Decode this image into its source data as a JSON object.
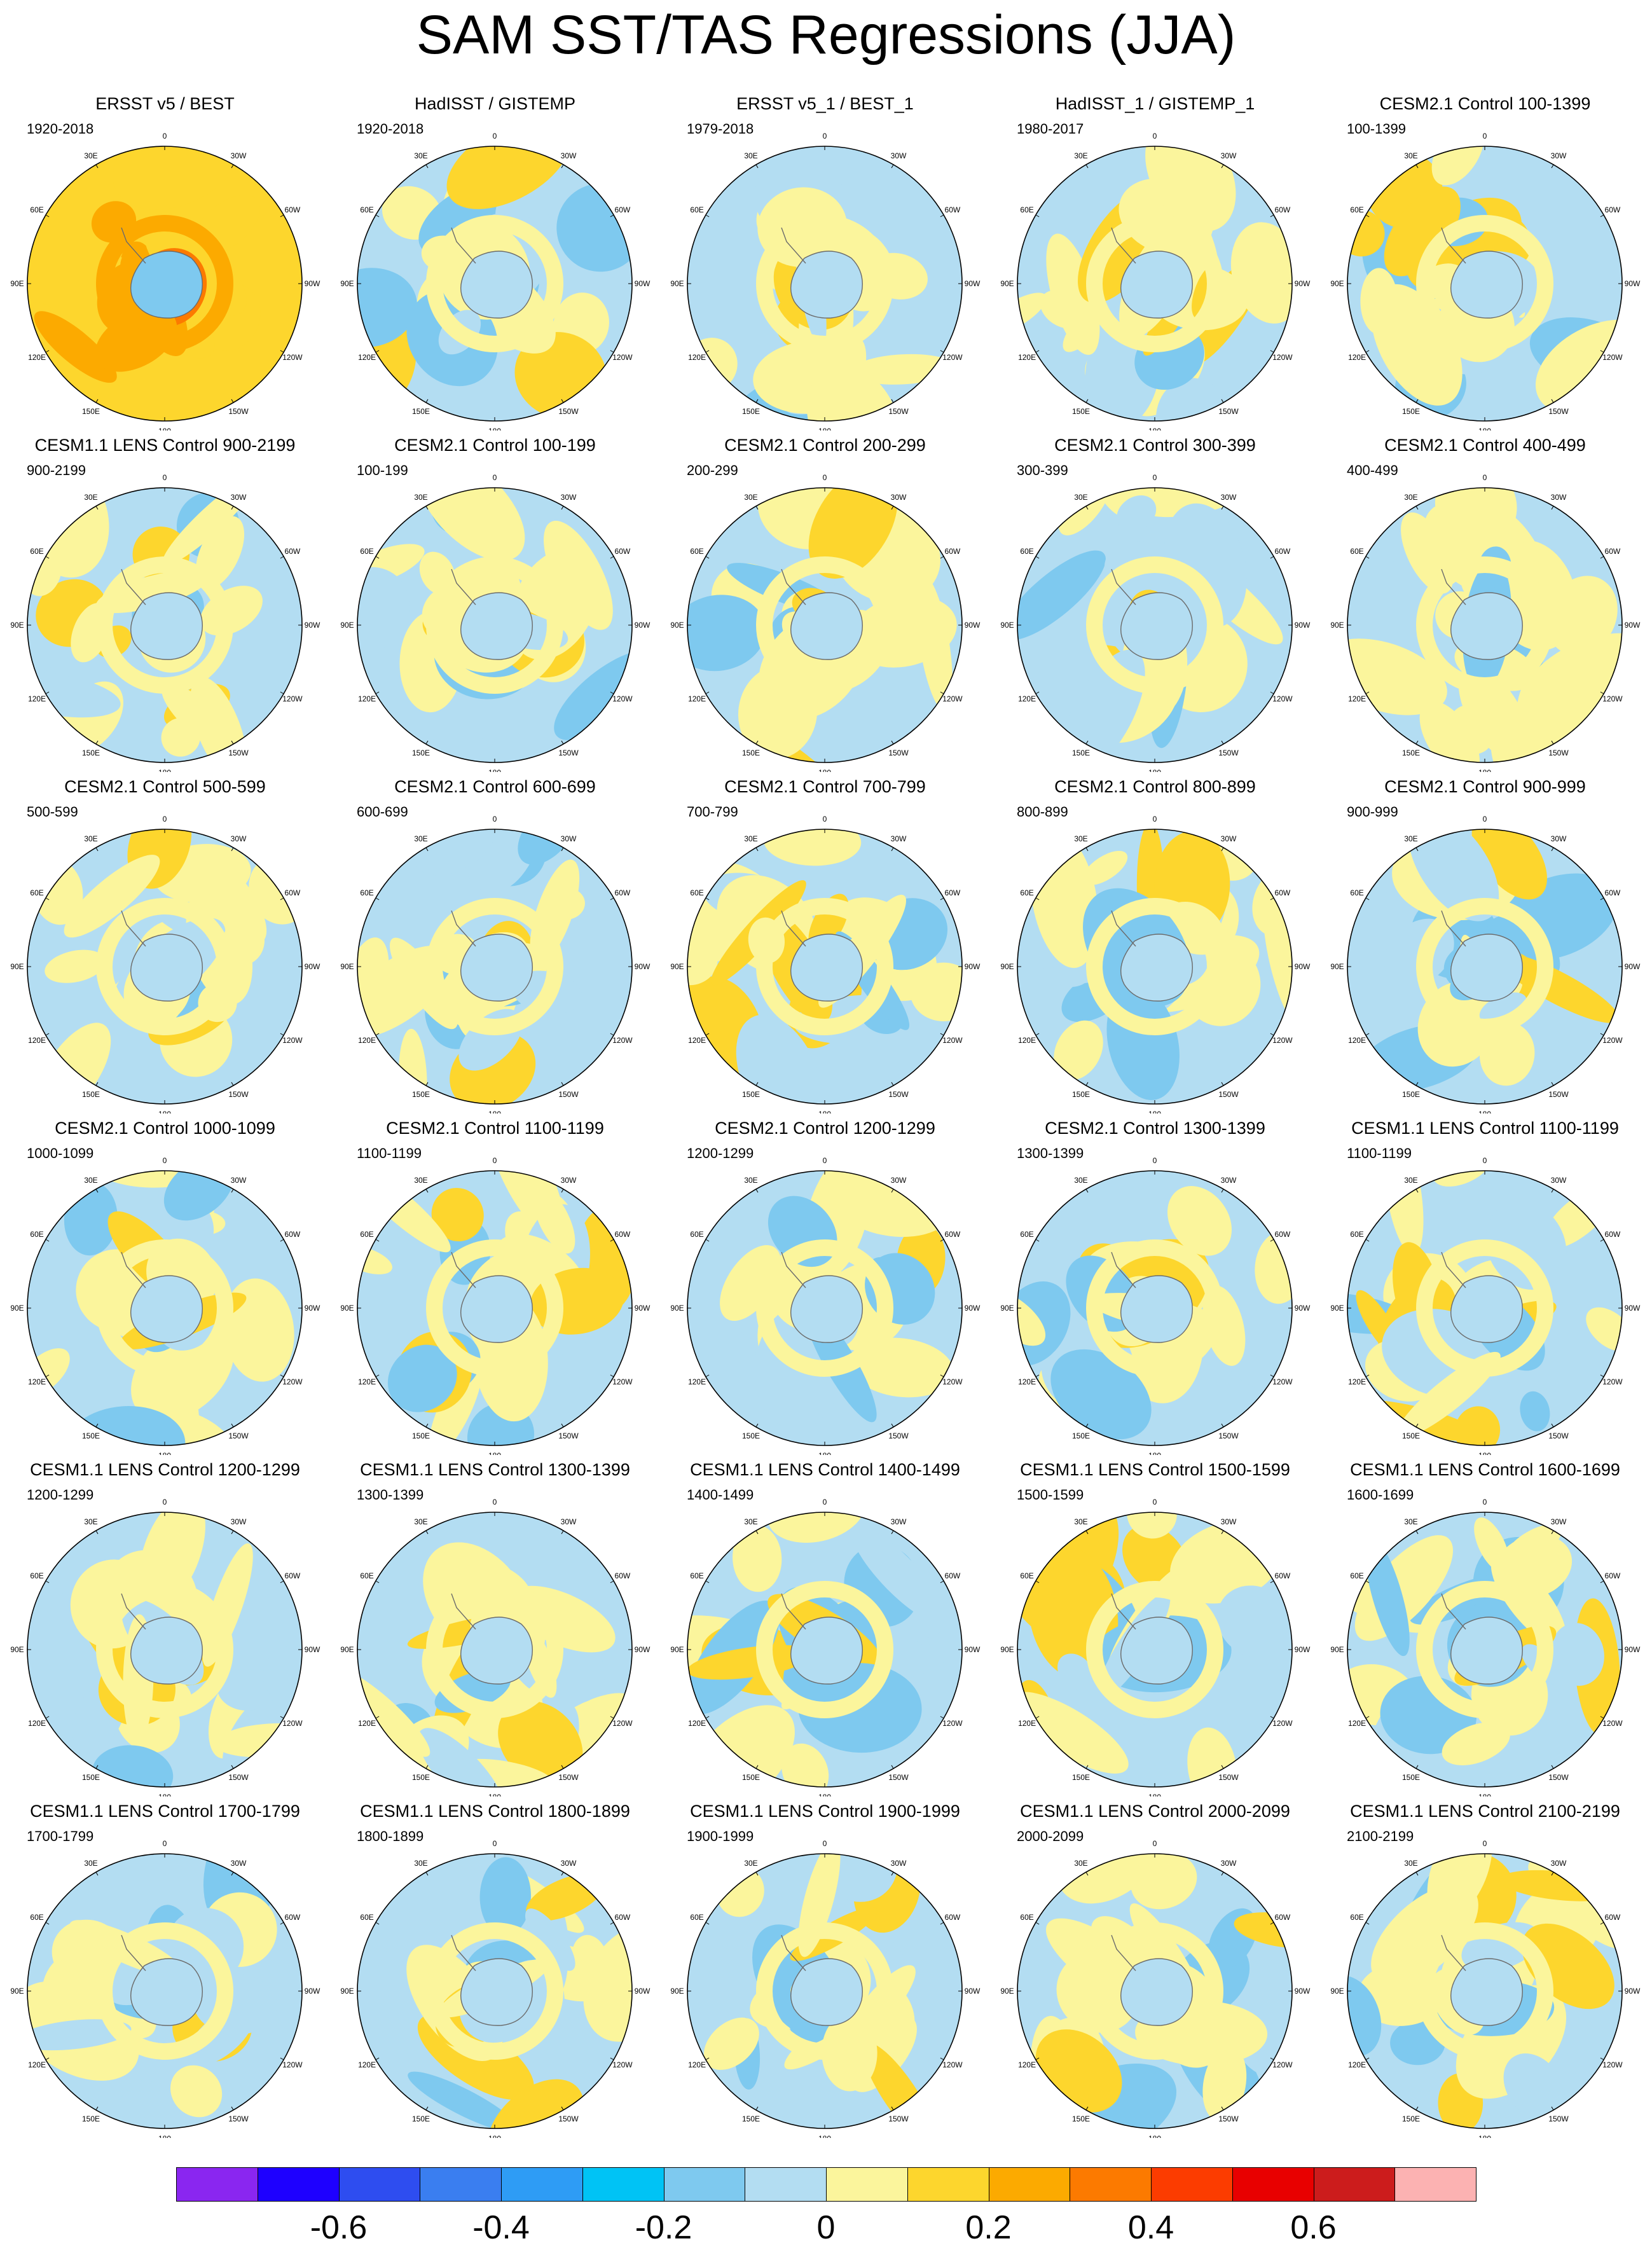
{
  "title": "SAM SST/TAS Regressions (JJA)",
  "lon_labels": [
    "0",
    "30E",
    "60E",
    "90E",
    "120E",
    "150E",
    "180",
    "150W",
    "120W",
    "90W",
    "60W",
    "30W"
  ],
  "panels": [
    {
      "title": "ERSST v5 / BEST",
      "period": "1920-2018"
    },
    {
      "title": "HadISST / GISTEMP",
      "period": "1920-2018"
    },
    {
      "title": "ERSST v5_1 / BEST_1",
      "period": "1979-2018"
    },
    {
      "title": "HadISST_1 / GISTEMP_1",
      "period": "1980-2017"
    },
    {
      "title": "CESM2.1 Control 100-1399",
      "period": "100-1399"
    },
    {
      "title": "CESM1.1 LENS Control 900-2199",
      "period": "900-2199"
    },
    {
      "title": "CESM2.1 Control 100-199",
      "period": "100-199"
    },
    {
      "title": "CESM2.1 Control 200-299",
      "period": "200-299"
    },
    {
      "title": "CESM2.1 Control 300-399",
      "period": "300-399"
    },
    {
      "title": "CESM2.1 Control 400-499",
      "period": "400-499"
    },
    {
      "title": "CESM2.1 Control 500-599",
      "period": "500-599"
    },
    {
      "title": "CESM2.1 Control 600-699",
      "period": "600-699"
    },
    {
      "title": "CESM2.1 Control 700-799",
      "period": "700-799"
    },
    {
      "title": "CESM2.1 Control 800-899",
      "period": "800-899"
    },
    {
      "title": "CESM2.1 Control 900-999",
      "period": "900-999"
    },
    {
      "title": "CESM2.1 Control 1000-1099",
      "period": "1000-1099"
    },
    {
      "title": "CESM2.1 Control 1100-1199",
      "period": "1100-1199"
    },
    {
      "title": "CESM2.1 Control 1200-1299",
      "period": "1200-1299"
    },
    {
      "title": "CESM2.1 Control 1300-1399",
      "period": "1300-1399"
    },
    {
      "title": "CESM1.1 LENS Control 1100-1199",
      "period": "1100-1199"
    },
    {
      "title": "CESM1.1 LENS Control 1200-1299",
      "period": "1200-1299"
    },
    {
      "title": "CESM1.1 LENS Control 1300-1399",
      "period": "1300-1399"
    },
    {
      "title": "CESM1.1 LENS Control 1400-1499",
      "period": "1400-1499"
    },
    {
      "title": "CESM1.1 LENS Control 1500-1599",
      "period": "1500-1599"
    },
    {
      "title": "CESM1.1 LENS Control 1600-1699",
      "period": "1600-1699"
    },
    {
      "title": "CESM1.1 LENS Control 1700-1799",
      "period": "1700-1799"
    },
    {
      "title": "CESM1.1 LENS Control 1800-1899",
      "period": "1800-1899"
    },
    {
      "title": "CESM1.1 LENS Control 1900-1999",
      "period": "1900-1999"
    },
    {
      "title": "CESM1.1 LENS Control 2000-2099",
      "period": "2000-2099"
    },
    {
      "title": "CESM1.1 LENS Control 2100-2199",
      "period": "2100-2199"
    }
  ],
  "chart_data": {
    "type": "heatmap",
    "projection": "south polar stereographic",
    "layout": {
      "rows": 6,
      "cols": 5
    },
    "colorbar": {
      "colors": [
        "#8a26f0",
        "#1e00ff",
        "#2e4df0",
        "#3a7ef0",
        "#2e9cf5",
        "#00c3f5",
        "#7ec9ef",
        "#b3ddf2",
        "#fbf59c",
        "#fdd62d",
        "#fcaa00",
        "#fc7a00",
        "#fc3c00",
        "#e80000",
        "#cc1c1c",
        "#fcb2b2"
      ],
      "boundaries": [
        -0.7,
        -0.6,
        -0.5,
        -0.4,
        -0.3,
        -0.2,
        -0.1,
        0,
        0.1,
        0.2,
        0.3,
        0.4,
        0.5,
        0.6,
        0.7
      ],
      "tick_labels": [
        "-0.6",
        "-0.4",
        "-0.2",
        "0",
        "0.2",
        "0.4",
        "0.6"
      ]
    }
  }
}
